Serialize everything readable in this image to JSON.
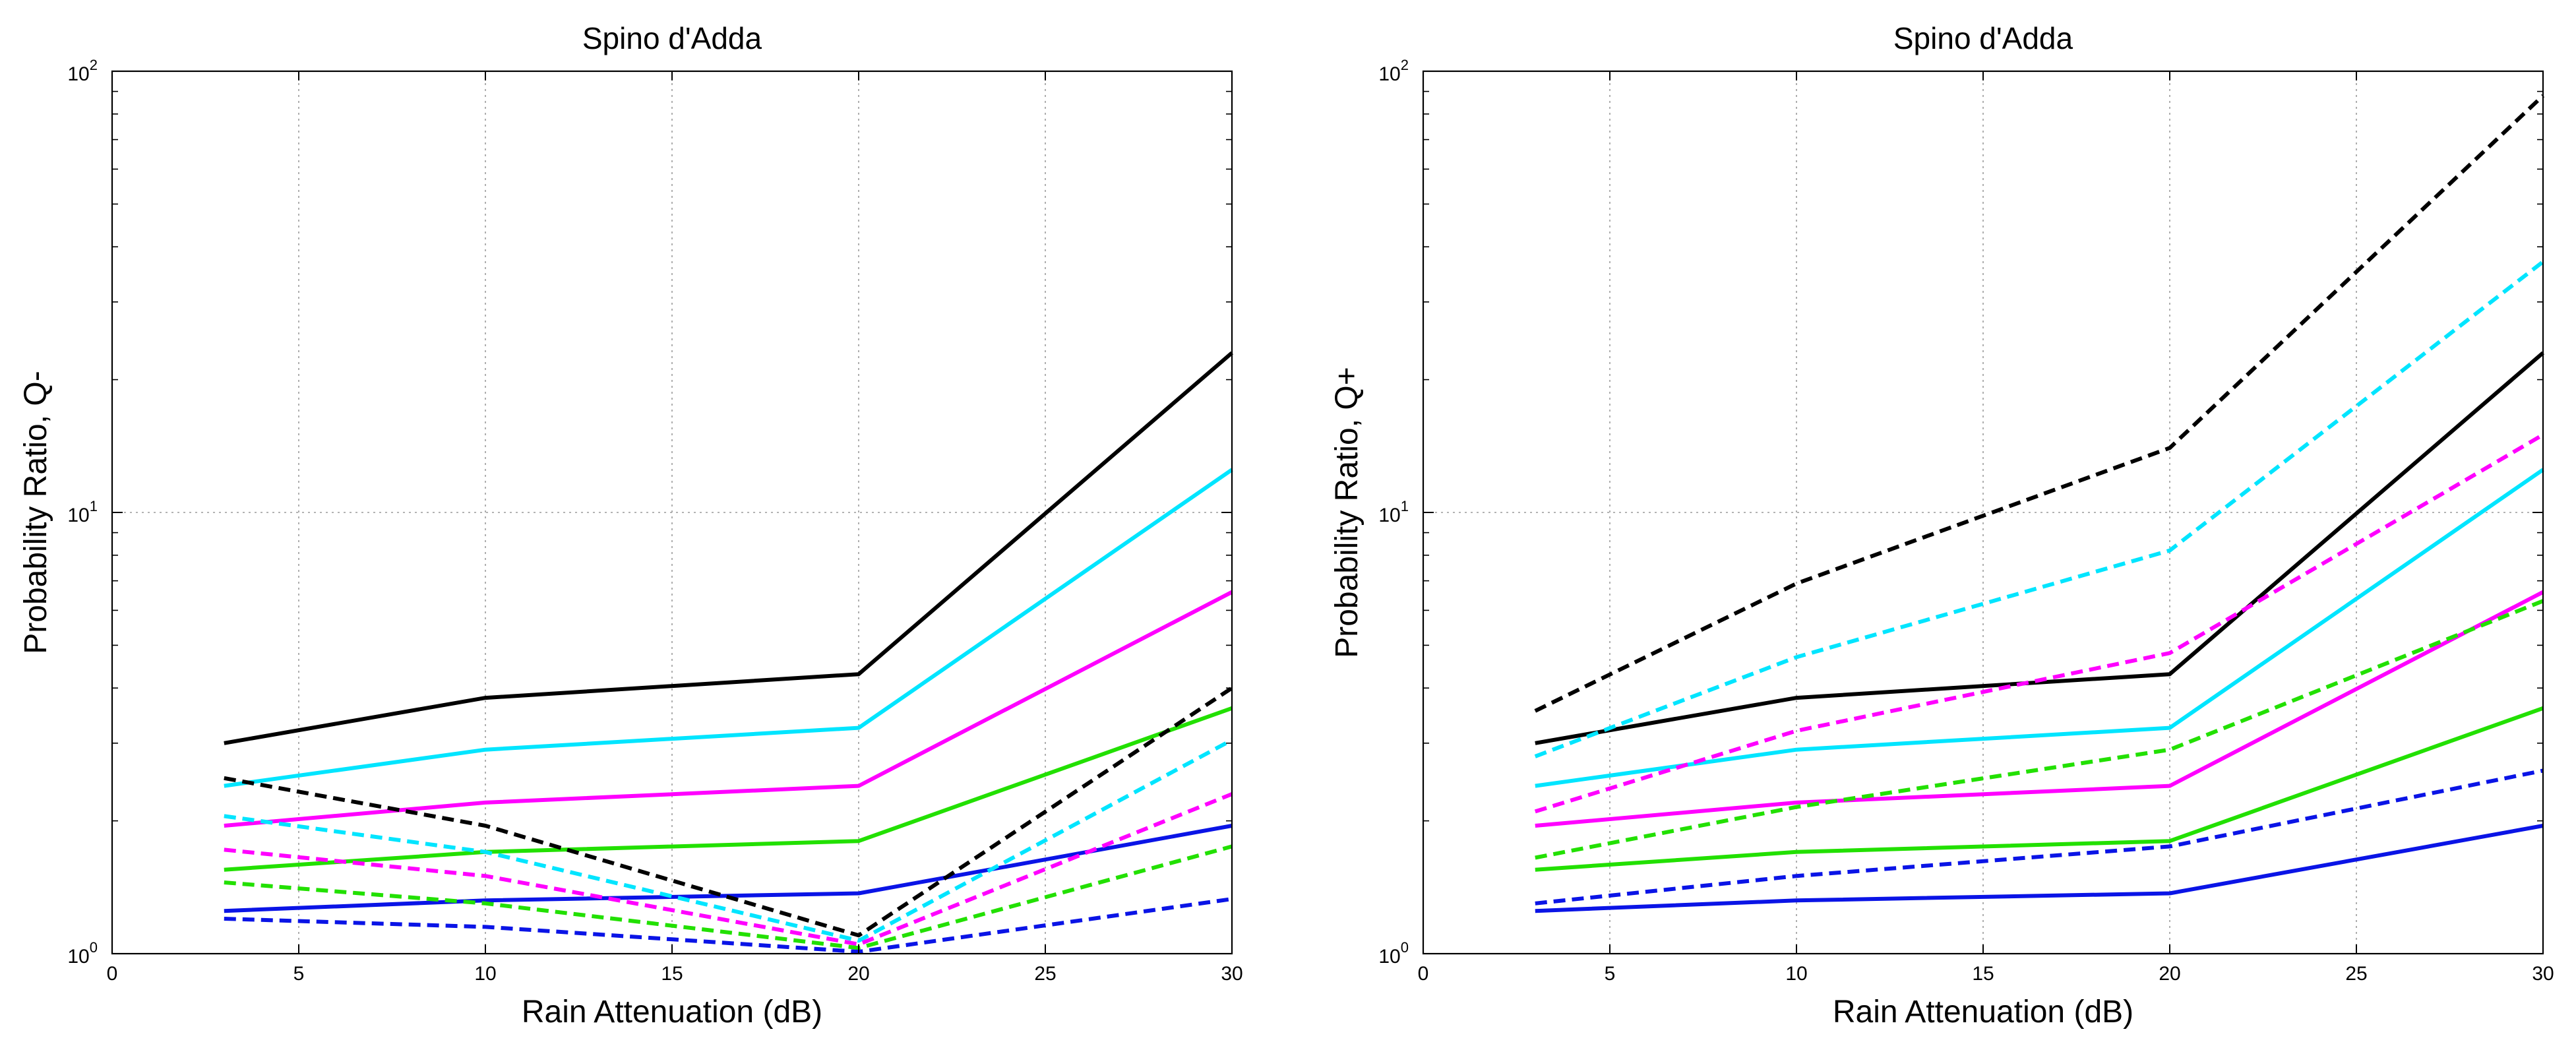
{
  "colors": {
    "black": "#000000",
    "cyan": "#00e5ff",
    "magenta": "#ff00ff",
    "green": "#22e000",
    "blue": "#0a14e6",
    "grid": "#9a9a9a"
  },
  "chart_data": [
    {
      "type": "line",
      "title": "Spino d'Adda",
      "xlabel": "Rain Attenuation (dB)",
      "ylabel": "Probability Ratio, Q-",
      "xlim": [
        0,
        30
      ],
      "ylim": [
        1,
        100
      ],
      "yscale": "log",
      "grid": true,
      "xticks": [
        0,
        5,
        10,
        15,
        20,
        25,
        30
      ],
      "yticks": [
        {
          "base": "10",
          "exp": "0"
        },
        {
          "base": "10",
          "exp": "1"
        },
        {
          "base": "10",
          "exp": "2"
        }
      ],
      "x": [
        3,
        10,
        20,
        30
      ],
      "series": [
        {
          "name": "black solid",
          "color": "black",
          "style": "solid",
          "values": [
            3.0,
            3.8,
            4.3,
            23.0
          ]
        },
        {
          "name": "cyan solid",
          "color": "cyan",
          "style": "solid",
          "values": [
            2.4,
            2.9,
            3.25,
            12.5
          ]
        },
        {
          "name": "magenta solid",
          "color": "magenta",
          "style": "solid",
          "values": [
            1.95,
            2.2,
            2.4,
            6.6
          ]
        },
        {
          "name": "green solid",
          "color": "green",
          "style": "solid",
          "values": [
            1.55,
            1.7,
            1.8,
            3.6
          ]
        },
        {
          "name": "blue solid",
          "color": "blue",
          "style": "solid",
          "values": [
            1.25,
            1.32,
            1.37,
            1.95
          ]
        },
        {
          "name": "black dashed",
          "color": "black",
          "style": "dashed",
          "values": [
            2.5,
            1.95,
            1.1,
            4.0
          ]
        },
        {
          "name": "cyan dashed",
          "color": "cyan",
          "style": "dashed",
          "values": [
            2.05,
            1.7,
            1.07,
            3.05
          ]
        },
        {
          "name": "magenta dashed",
          "color": "magenta",
          "style": "dashed",
          "values": [
            1.72,
            1.5,
            1.05,
            2.3
          ]
        },
        {
          "name": "green dashed",
          "color": "green",
          "style": "dashed",
          "values": [
            1.45,
            1.3,
            1.03,
            1.75
          ]
        },
        {
          "name": "blue dashed",
          "color": "blue",
          "style": "dashed",
          "values": [
            1.2,
            1.15,
            1.01,
            1.33
          ]
        }
      ]
    },
    {
      "type": "line",
      "title": "Spino d'Adda",
      "xlabel": "Rain Attenuation (dB)",
      "ylabel": "Probability Ratio, Q+",
      "xlim": [
        0,
        30
      ],
      "ylim": [
        1,
        100
      ],
      "yscale": "log",
      "grid": true,
      "xticks": [
        0,
        5,
        10,
        15,
        20,
        25,
        30
      ],
      "yticks": [
        {
          "base": "10",
          "exp": "0"
        },
        {
          "base": "10",
          "exp": "1"
        },
        {
          "base": "10",
          "exp": "2"
        }
      ],
      "x": [
        3,
        10,
        20,
        30
      ],
      "series": [
        {
          "name": "black solid",
          "color": "black",
          "style": "solid",
          "values": [
            3.0,
            3.8,
            4.3,
            23.0
          ]
        },
        {
          "name": "cyan solid",
          "color": "cyan",
          "style": "solid",
          "values": [
            2.4,
            2.9,
            3.25,
            12.5
          ]
        },
        {
          "name": "magenta solid",
          "color": "magenta",
          "style": "solid",
          "values": [
            1.95,
            2.2,
            2.4,
            6.6
          ]
        },
        {
          "name": "green solid",
          "color": "green",
          "style": "solid",
          "values": [
            1.55,
            1.7,
            1.8,
            3.6
          ]
        },
        {
          "name": "blue solid",
          "color": "blue",
          "style": "solid",
          "values": [
            1.25,
            1.32,
            1.37,
            1.95
          ]
        },
        {
          "name": "black dashed",
          "color": "black",
          "style": "dashed",
          "values": [
            3.55,
            6.9,
            14.0,
            88.0
          ]
        },
        {
          "name": "cyan dashed",
          "color": "cyan",
          "style": "dashed",
          "values": [
            2.8,
            4.7,
            8.2,
            37.0
          ]
        },
        {
          "name": "magenta dashed",
          "color": "magenta",
          "style": "dashed",
          "values": [
            2.1,
            3.2,
            4.8,
            15.0
          ]
        },
        {
          "name": "green dashed",
          "color": "green",
          "style": "dashed",
          "values": [
            1.65,
            2.15,
            2.9,
            6.3
          ]
        },
        {
          "name": "blue dashed",
          "color": "blue",
          "style": "dashed",
          "values": [
            1.3,
            1.5,
            1.75,
            2.6
          ]
        }
      ]
    }
  ]
}
